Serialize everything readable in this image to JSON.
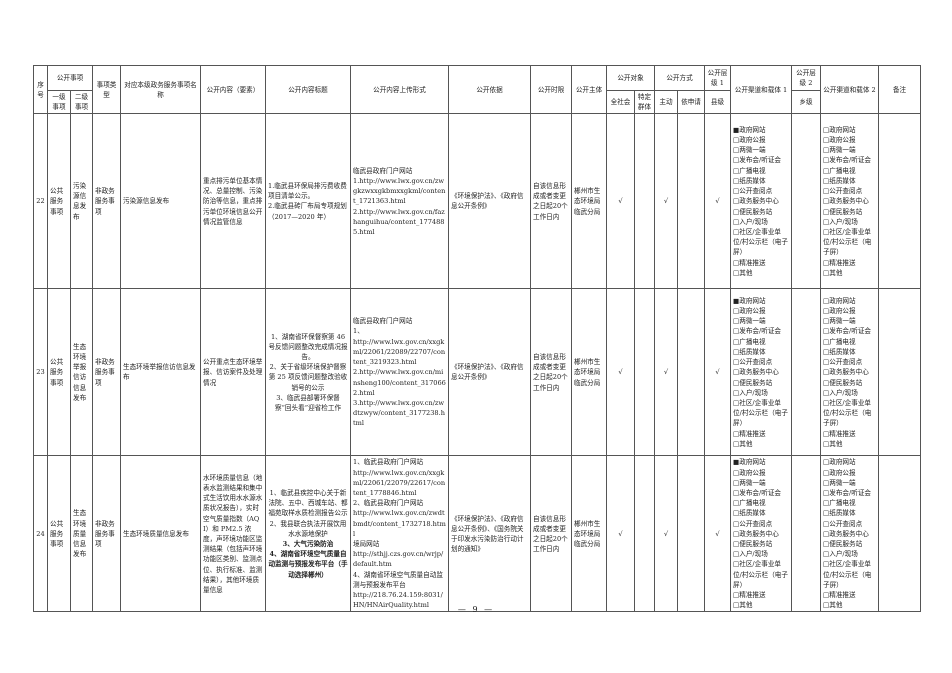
{
  "header": {
    "seq": "序号",
    "items": "公开事项",
    "level1": "一级事项",
    "level2": "二级事项",
    "type": "事项类型",
    "service_name": "对应本级政务服务事项名称",
    "content": "公开内容（要素）",
    "content_title": "公开内容标题",
    "upload_form": "公开内容上传形式",
    "basis": "公开依据",
    "time_limit": "公开时限",
    "subject": "公开主体",
    "audience": "公开对象",
    "audience_all": "全社会",
    "audience_specific": "特定群体",
    "method": "公开方式",
    "method_active": "主动",
    "method_request": "依申请",
    "tier1": "公开层级 1",
    "tier1_value": "县级",
    "channel1": "公开渠道和载体 1",
    "tier2": "公开层级 2",
    "tier2_value": "乡级",
    "channel2": "公开渠道和载体 2",
    "remark": "备注"
  },
  "check_mark": "√",
  "channels": [
    "政府网站",
    "政府公报",
    "两微一端",
    "发布会/听证会",
    "广播电视",
    "纸质媒体",
    "公开查阅点",
    "政务服务中心",
    "便民服务站",
    "入户/现场",
    "社区/企事业单位/村公示栏（电子屏）",
    "精准推送",
    "其他"
  ],
  "rows": [
    {
      "seq": "22",
      "level1": "公共服务事项",
      "level2": "污染源信息发布",
      "type": "非政务服务事项",
      "service_name": "污染源信息发布",
      "content": "重点排污单位基本情况、总量控制、污染防治等信息，重点排污单位环境信息公开情况监管信息",
      "title_align": "left",
      "titles": [
        {
          "text": "1.临武县环保局排污费收费项目清单公示。",
          "bold": false
        },
        {
          "text": "2.临武县砖厂布局专项规划（2017—2020 年）",
          "bold": false
        }
      ],
      "upload": [
        "临武县政府门户网站",
        "1.http://www.lwx.gov.cn/zwgkzwxxgkbmxxgkml/content_1721363.html",
        "2.http://www.lwx.gov.cn/fazhanguihua/content_1774885.html"
      ],
      "basis": "《环境保护法》、《政府信息公开条例》",
      "time_limit": "自该信息形成或者变更之日起20个工作日内",
      "subject": "郴州市生态环境局临武分局",
      "audience_all": true,
      "audience_specific": false,
      "method_active": true,
      "method_request": false,
      "tier1": true,
      "tier2": false,
      "channel1_checked": [
        0
      ],
      "channel2_checked": [],
      "remark": ""
    },
    {
      "seq": "23",
      "level1": "公共服务事项",
      "level2": "生态环境举报信访信息发布",
      "type": "非政务服务事项",
      "service_name": "生态环境举报信访信息发布",
      "content": "公开重点生态环境举报、信访案件及处理情况",
      "title_align": "center",
      "titles": [
        {
          "text": "1、湖南省环保督察第 46 号反馈问题整改完成情况报告。",
          "bold": false
        },
        {
          "text": "2、关于省级环境保护督察第 25 项反馈问题整改验收销号的公示",
          "bold": false
        },
        {
          "text": "3、临武县部署环保督察“回头看”迎省检工作",
          "bold": false
        }
      ],
      "upload": [
        "临武县政府门户网站",
        "1、",
        "http://www.lwx.gov.cn/xxgkml/22061/22089/22707/content_3219323.html",
        "2.http://www.lwx.gov.cn/minsheng100/content_3170662.html",
        "3.http://www.lwx.gov.cn/zwdtzwyw/content_3177238.html"
      ],
      "basis": "《环境保护法》、《政府信息公开条例》",
      "time_limit": "自该信息形成或者变更之日起20个工作日内",
      "subject": "郴州市生态环境局临武分局",
      "audience_all": true,
      "audience_specific": false,
      "method_active": true,
      "method_request": false,
      "tier1": true,
      "tier2": false,
      "channel1_checked": [
        0
      ],
      "channel2_checked": [],
      "remark": ""
    },
    {
      "seq": "24",
      "level1": "公共服务事项",
      "level2": "生态环境质量信息发布",
      "type": "非政务服务事项",
      "service_name": "生态环境质量信息发布",
      "content": "水环境质量信息（地表水监测结果和集中式生活饮用水水源水质状况报告），实时空气质量指数（AQI）和 PM2.5 浓度，声环境功能区监测结果（包括声环境功能区类别、监测点位、执行标准、监测结果），其他环境质量信息",
      "title_align": "center",
      "titles": [
        {
          "text": "1、临武县疾控中心关于新法院、五中、西城车站、都福苑取样水质检测报告公示",
          "bold": false
        },
        {
          "text": "2、我县联合执法开展饮用水水源地保护",
          "bold": false
        },
        {
          "text": "3、大气污染防治",
          "bold": true
        },
        {
          "text": "4、湖南省环境空气质量自动监测与预报发布平台（手动选择郴州）",
          "bold": true
        }
      ],
      "upload": [
        "1、临武县政府门户网站",
        "http://www.lwx.gov.cn/xxgkml/22061/22079/22617/content_1778846.html",
        "2、临武县政府门户网站",
        "http://www.lwx.gov.cn/zwdtbmdt/content_1732718.html",
        "境局网站",
        "http://sthjj.czs.gov.cn/wrjp/default.htm",
        "4、湖南省环境空气质量自动监测与预报发布平台",
        "http://218.76.24.159:8031/HN/HNAirQuality.html"
      ],
      "basis": "《环境保护法》、《政府信息公开条例》、《国务院关于印发水污染防治行动计划的通知》",
      "time_limit": "自该信息形成或者变更之日起20个工作日内",
      "subject": "郴州市生态环境局临武分局",
      "audience_all": true,
      "audience_specific": false,
      "method_active": true,
      "method_request": false,
      "tier1": true,
      "tier2": false,
      "channel1_checked": [
        0
      ],
      "channel2_checked": [],
      "remark": ""
    }
  ],
  "page_number": "— 9 —"
}
